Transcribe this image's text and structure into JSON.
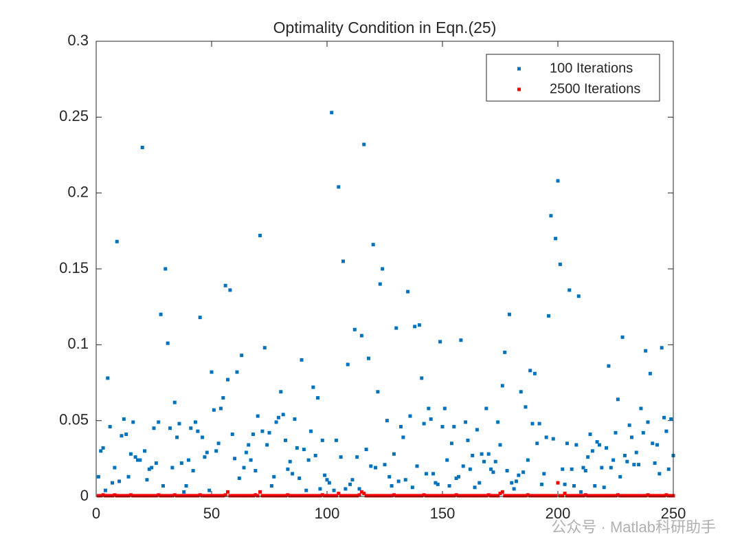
{
  "chart_data": {
    "type": "scatter",
    "title": "Optimality Condition in Eqn.(25)",
    "watermark": "公众号 · Matlab科研助手",
    "xlim": [
      0,
      250
    ],
    "xticks": [
      0,
      50,
      100,
      150,
      200,
      250
    ],
    "ylim": [
      0,
      0.3
    ],
    "yticks": [
      0,
      0.05,
      0.1,
      0.15,
      0.2,
      0.25,
      0.3
    ],
    "grid": false,
    "legend": "northeast",
    "x": [
      1,
      2,
      3,
      4,
      5,
      6,
      7,
      8,
      9,
      10,
      11,
      12,
      13,
      14,
      15,
      16,
      17,
      18,
      19,
      20,
      21,
      22,
      23,
      24,
      25,
      26,
      27,
      28,
      29,
      30,
      31,
      32,
      33,
      34,
      35,
      36,
      37,
      38,
      39,
      40,
      41,
      42,
      43,
      44,
      45,
      46,
      47,
      48,
      49,
      50,
      51,
      52,
      53,
      54,
      55,
      56,
      57,
      58,
      59,
      60,
      61,
      62,
      63,
      64,
      65,
      66,
      67,
      68,
      69,
      70,
      71,
      72,
      73,
      74,
      75,
      76,
      77,
      78,
      79,
      80,
      81,
      82,
      83,
      84,
      85,
      86,
      87,
      88,
      89,
      90,
      91,
      92,
      93,
      94,
      95,
      96,
      97,
      98,
      99,
      100,
      101,
      102,
      103,
      104,
      105,
      106,
      107,
      108,
      109,
      110,
      111,
      112,
      113,
      114,
      115,
      116,
      117,
      118,
      119,
      120,
      121,
      122,
      123,
      124,
      125,
      126,
      127,
      128,
      129,
      130,
      131,
      132,
      133,
      134,
      135,
      136,
      137,
      138,
      139,
      140,
      141,
      142,
      143,
      144,
      145,
      146,
      147,
      148,
      149,
      150,
      151,
      152,
      153,
      154,
      155,
      156,
      157,
      158,
      159,
      160,
      161,
      162,
      163,
      164,
      165,
      166,
      167,
      168,
      169,
      170,
      171,
      172,
      173,
      174,
      175,
      176,
      177,
      178,
      179,
      180,
      181,
      182,
      183,
      184,
      185,
      186,
      187,
      188,
      189,
      190,
      191,
      192,
      193,
      194,
      195,
      196,
      197,
      198,
      199,
      200,
      201,
      202,
      203,
      204,
      205,
      206,
      207,
      208,
      209,
      210,
      211,
      212,
      213,
      214,
      215,
      216,
      217,
      218,
      219,
      220,
      221,
      222,
      223,
      224,
      225,
      226,
      227,
      228,
      229,
      230,
      231,
      232,
      233,
      234,
      235,
      236,
      237,
      238,
      239,
      240,
      241,
      242,
      243,
      244,
      245,
      246,
      247,
      248,
      249,
      250
    ],
    "series": [
      {
        "name": "100 Iterations",
        "color": "#0072BD",
        "values": [
          0.013,
          0.03,
          0.032,
          0.004,
          0.078,
          0.046,
          0.009,
          0.019,
          0.168,
          0.01,
          0.04,
          0.051,
          0.041,
          0.013,
          0.028,
          0.049,
          0.026,
          0.024,
          0.024,
          0.23,
          0.03,
          0.011,
          0.018,
          0.019,
          0.045,
          0.022,
          0.049,
          0.12,
          0.007,
          0.15,
          0.101,
          0.045,
          0.019,
          0.062,
          0.039,
          0.048,
          0.022,
          0.003,
          0.007,
          0.024,
          0.045,
          0.017,
          0.049,
          0.043,
          0.118,
          0.039,
          0.026,
          0.029,
          0.004,
          0.082,
          0.057,
          0.03,
          0.035,
          0.058,
          0.065,
          0.139,
          0.077,
          0.136,
          0.041,
          0.025,
          0.082,
          0.012,
          0.093,
          0.019,
          0.029,
          0.034,
          0.024,
          0.041,
          0.017,
          0.053,
          0.172,
          0.043,
          0.098,
          0.034,
          0.042,
          0.007,
          0.013,
          0.049,
          0.052,
          0.069,
          0.054,
          0.037,
          0.018,
          0.023,
          0.015,
          0.051,
          0.032,
          0.012,
          0.09,
          0.031,
          0.004,
          0.024,
          0.043,
          0.072,
          0.027,
          0.065,
          0.005,
          0.037,
          0.014,
          0.011,
          0.009,
          0.253,
          0.004,
          0.037,
          0.204,
          0.026,
          0.155,
          0.005,
          0.087,
          0.008,
          0.011,
          0.11,
          0.026,
          0.005,
          0.106,
          0.232,
          0.031,
          0.091,
          0.02,
          0.166,
          0.019,
          0.069,
          0.14,
          0.15,
          0.021,
          0.05,
          0.013,
          0.007,
          0.028,
          0.111,
          0.01,
          0.046,
          0.039,
          0.011,
          0.135,
          0.053,
          0.006,
          0.112,
          0.02,
          0.113,
          0.078,
          0.048,
          0.015,
          0.058,
          0.051,
          0.015,
          0.009,
          0.008,
          0.102,
          0.046,
          0.058,
          0.024,
          0.007,
          0.035,
          0.046,
          0.012,
          0.013,
          0.103,
          0.02,
          0.049,
          0.037,
          0.018,
          0.027,
          0.006,
          0.044,
          0.009,
          0.028,
          0.023,
          0.058,
          0.028,
          0.018,
          0.016,
          0.023,
          0.049,
          0.034,
          0.073,
          0.095,
          0.017,
          0.12,
          0.009,
          0.005,
          0.01,
          0.014,
          0.069,
          0.016,
          0.059,
          0.024,
          0.083,
          0.048,
          0.081,
          0.035,
          0.048,
          0.008,
          0.015,
          0.039,
          0.119,
          0.185,
          0.038,
          0.17,
          0.208,
          0.153,
          0.018,
          0.008,
          0.035,
          0.136,
          0.018,
          0.007,
          0.034,
          0.132,
          0.003,
          0.019,
          0.017,
          0.026,
          0.041,
          0.03,
          0.007,
          0.036,
          0.034,
          0.019,
          0.006,
          0.032,
          0.086,
          0.019,
          0.024,
          0.042,
          0.064,
          0.013,
          0.105,
          0.027,
          0.023,
          0.047,
          0.039,
          0.021,
          0.029,
          0.021,
          0.058,
          0.042,
          0.096,
          0.049,
          0.081,
          0.035,
          0.022,
          0.034,
          0.015,
          0.098,
          0.052,
          0.043,
          0.018,
          0.051,
          0.027
        ]
      },
      {
        "name": "2500 Iterations",
        "color": "#FF0000",
        "values": [
          0.0005,
          0.0005,
          0.001,
          0.0005,
          0.0005,
          0.0005,
          0.0005,
          0.001,
          0.0005,
          0.0005,
          0.0005,
          0.0005,
          0.0005,
          0.0005,
          0.001,
          0.0005,
          0.0005,
          0.0005,
          0.0005,
          0.0005,
          0.0005,
          0.0005,
          0.0005,
          0.0005,
          0.0005,
          0.0005,
          0.001,
          0.0005,
          0.0005,
          0.0005,
          0.0005,
          0.0005,
          0.0005,
          0.001,
          0.0005,
          0.0005,
          0.0005,
          0.0005,
          0.0005,
          0.0005,
          0.0005,
          0.0005,
          0.0005,
          0.0005,
          0.001,
          0.0005,
          0.0005,
          0.0005,
          0.0005,
          0.0005,
          0.0005,
          0.0005,
          0.0005,
          0.0005,
          0.0005,
          0.001,
          0.003,
          0.0005,
          0.0005,
          0.0005,
          0.0005,
          0.0005,
          0.0005,
          0.0005,
          0.0005,
          0.0005,
          0.0005,
          0.0005,
          0.001,
          0.0005,
          0.003,
          0.0005,
          0.0005,
          0.0005,
          0.0005,
          0.0005,
          0.0005,
          0.0005,
          0.0005,
          0.0005,
          0.0005,
          0.0005,
          0.001,
          0.0005,
          0.0005,
          0.0005,
          0.0005,
          0.0005,
          0.0005,
          0.0005,
          0.0005,
          0.0005,
          0.0005,
          0.0005,
          0.0005,
          0.0005,
          0.0005,
          0.001,
          0.0005,
          0.0005,
          0.0005,
          0.0005,
          0.0005,
          0.0005,
          0.002,
          0.0005,
          0.0005,
          0.0005,
          0.0005,
          0.0005,
          0.0005,
          0.0005,
          0.0005,
          0.001,
          0.003,
          0.002,
          0.0005,
          0.0005,
          0.0005,
          0.0005,
          0.0005,
          0.0005,
          0.0005,
          0.0005,
          0.0005,
          0.0005,
          0.0005,
          0.0005,
          0.001,
          0.0005,
          0.0005,
          0.0005,
          0.0005,
          0.0005,
          0.0005,
          0.0005,
          0.0005,
          0.0005,
          0.0005,
          0.0005,
          0.0005,
          0.001,
          0.0005,
          0.0005,
          0.0005,
          0.0005,
          0.0005,
          0.0005,
          0.0005,
          0.0005,
          0.0005,
          0.0005,
          0.0005,
          0.0005,
          0.0005,
          0.001,
          0.0005,
          0.0005,
          0.0005,
          0.0005,
          0.0005,
          0.0005,
          0.0005,
          0.0005,
          0.0005,
          0.0005,
          0.0005,
          0.0005,
          0.0005,
          0.001,
          0.0005,
          0.0005,
          0.0005,
          0.0005,
          0.002,
          0.003,
          0.0005,
          0.0005,
          0.0005,
          0.0005,
          0.0005,
          0.0005,
          0.0005,
          0.0005,
          0.0005,
          0.0005,
          0.001,
          0.0005,
          0.0005,
          0.0005,
          0.0005,
          0.0005,
          0.0005,
          0.0005,
          0.0005,
          0.0005,
          0.0005,
          0.0005,
          0.0005,
          0.009,
          0.0005,
          0.0005,
          0.002,
          0.0005,
          0.0005,
          0.0005,
          0.0005,
          0.0005,
          0.0005,
          0.0005,
          0.0005,
          0.001,
          0.0005,
          0.0005,
          0.0005,
          0.0005,
          0.0005,
          0.0005,
          0.0005,
          0.0005,
          0.0005,
          0.0005,
          0.0005,
          0.0005,
          0.0005,
          0.001,
          0.0005,
          0.0005,
          0.0005,
          0.0005,
          0.0005,
          0.0005,
          0.0005,
          0.0005,
          0.0005,
          0.0005,
          0.0005,
          0.0005,
          0.001,
          0.0005,
          0.0005,
          0.0005,
          0.0005,
          0.0005,
          0.0005,
          0.0005,
          0.001,
          0.0005,
          0.0005,
          0.0005
        ]
      }
    ]
  }
}
